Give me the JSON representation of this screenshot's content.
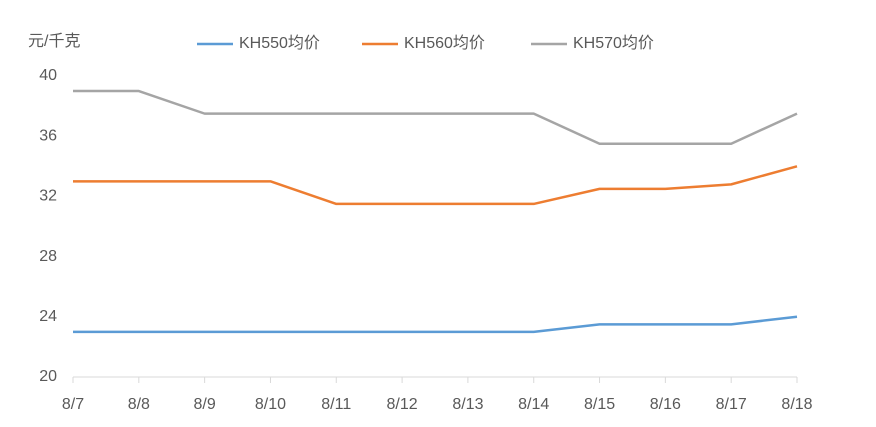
{
  "chart_data": {
    "type": "line",
    "y_axis_label": "元/千克",
    "categories": [
      "8/7",
      "8/8",
      "8/9",
      "8/10",
      "8/11",
      "8/12",
      "8/13",
      "8/14",
      "8/15",
      "8/16",
      "8/17",
      "8/18"
    ],
    "series": [
      {
        "name": "KH550均价",
        "color": "#5b9bd5",
        "values": [
          23,
          23,
          23,
          23,
          23,
          23,
          23,
          23,
          23.5,
          23.5,
          23.5,
          24
        ]
      },
      {
        "name": "KH560均价",
        "color": "#ed7d31",
        "values": [
          33,
          33,
          33,
          33,
          31.5,
          31.5,
          31.5,
          31.5,
          32.5,
          32.5,
          32.8,
          34
        ]
      },
      {
        "name": "KH570均价",
        "color": "#a5a5a5",
        "values": [
          39,
          39,
          37.5,
          37.5,
          37.5,
          37.5,
          37.5,
          37.5,
          35.5,
          35.5,
          35.5,
          37.5
        ]
      }
    ],
    "ylim": [
      20,
      40
    ],
    "yticks": [
      20,
      24,
      28,
      32,
      36,
      40
    ],
    "grid": false
  }
}
